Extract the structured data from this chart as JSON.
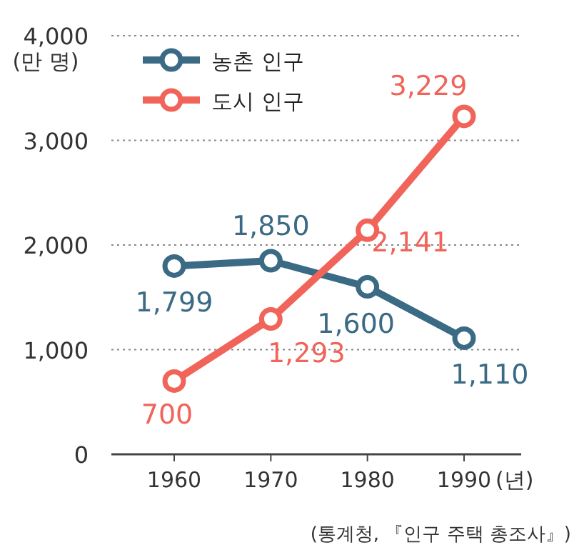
{
  "chart_data": {
    "type": "line",
    "categories": [
      "1960",
      "1970",
      "1980",
      "1990"
    ],
    "xlabel": "(년)",
    "ylabel": "(만 명)",
    "ylim": [
      0,
      4000
    ],
    "yticks": [
      0,
      {
        "value": 1000,
        "label": "1,000"
      },
      {
        "value": 2000,
        "label": "2,000"
      },
      {
        "value": 3000,
        "label": "3,000"
      },
      {
        "value": 4000,
        "label": "4,000"
      }
    ],
    "grid": "y",
    "legend": "top left",
    "marker": "circle",
    "line_style": "solid",
    "series": [
      {
        "name": "농촌 인구",
        "color": "#3b6b84",
        "values": [
          1799,
          1850,
          1600,
          1110
        ],
        "value_labels": [
          "1,799",
          "1,850",
          "1,600",
          "1,110"
        ]
      },
      {
        "name": "도시 인구",
        "color": "#f0645a",
        "values": [
          700,
          1293,
          2141,
          3229
        ],
        "value_labels": [
          "700",
          "1,293",
          "2,141",
          "3,229"
        ]
      }
    ],
    "annotations": [
      "(통계청, 『인구 주택 총조사』)"
    ]
  }
}
